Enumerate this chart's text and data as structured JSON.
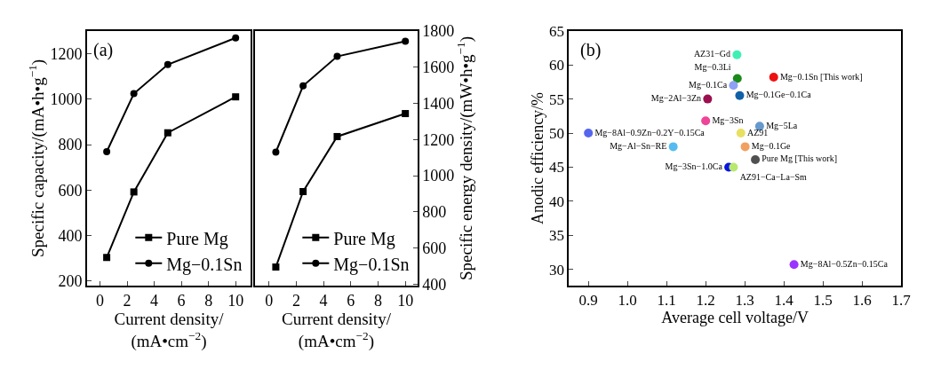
{
  "chart_data": [
    {
      "type": "line",
      "annotations": [
        "(a)"
      ],
      "xlabel": "Current density/\n(mA•cm$^{−2}$)",
      "ylabel": "Specific capacity/(mA•h•g$^{−1}$)",
      "xlim": [
        -0.95,
        11.1
      ],
      "xticks": [
        0,
        2,
        4,
        6,
        8,
        10
      ],
      "ylim": [
        180,
        1300
      ],
      "yticks": [
        200,
        400,
        600,
        800,
        1000,
        1200
      ],
      "legend": "bottom right",
      "line_style": "solid",
      "series": [
        {
          "name": "Pure Mg",
          "color": "#000000",
          "marker": "square",
          "x": [
            0.5,
            2.5,
            5,
            10
          ],
          "values": [
            304,
            592,
            852,
            1010
          ]
        },
        {
          "name": "Mg−0.1Sn",
          "color": "#000000",
          "marker": "circle",
          "x": [
            0.5,
            2.5,
            5,
            10
          ],
          "values": [
            769,
            1024,
            1152,
            1269
          ]
        }
      ]
    },
    {
      "type": "line",
      "xlabel": "Current density/\n(mA•cm$^{−2}$)",
      "y2label": "Specific energy density/(mW•h•g$^{−1}$)",
      "xlim": [
        -1.03,
        10.9
      ],
      "xticks": [
        0,
        2,
        4,
        6,
        8,
        10
      ],
      "y2lim": [
        392,
        1800
      ],
      "y2ticks": [
        400,
        600,
        800,
        1000,
        1200,
        1400,
        1600,
        1800
      ],
      "legend": "bottom right",
      "line_style": "solid",
      "series": [
        {
          "name": "Pure Mg",
          "color": "#000000",
          "marker": "square",
          "axis": "y2",
          "x": [
            0.5,
            2.5,
            5,
            10
          ],
          "values": [
            495,
            912,
            1216,
            1343
          ]
        },
        {
          "name": "Mg−0.1Sn",
          "color": "#000000",
          "marker": "circle",
          "axis": "y2",
          "x": [
            0.5,
            2.5,
            5,
            10
          ],
          "values": [
            1130,
            1496,
            1659,
            1743
          ]
        }
      ]
    },
    {
      "type": "scatter",
      "annotations": [
        "(b)"
      ],
      "xlabel": "Average cell voltage/V",
      "ylabel": "Anodic efficiency/%",
      "xlim": [
        0.85,
        1.7
      ],
      "xticks": [
        0.9,
        {
          "value": 1.0,
          "label": "1.0"
        },
        1.1,
        1.2,
        1.3,
        1.4,
        1.5,
        1.6,
        1.7
      ],
      "ylim": [
        27.6,
        65
      ],
      "yticks": [
        30,
        35,
        40,
        45,
        50,
        55,
        60,
        65
      ],
      "legend": false,
      "marker": "circle",
      "series": [
        {
          "name": "AZ31−Gd",
          "color": "#3ef0b4",
          "x": [
            1.28
          ],
          "values": [
            61.5
          ]
        },
        {
          "name": "Mg−0.3Li",
          "color": "#1a8a1a",
          "x": [
            1.281
          ],
          "values": [
            58.0
          ]
        },
        {
          "name": "Mg−0.1Sn [This work]",
          "color": "#ee1111",
          "x": [
            1.374
          ],
          "values": [
            58.2
          ]
        },
        {
          "name": "Mg−0.1Ca",
          "color": "#8fa0f5",
          "x": [
            1.271
          ],
          "values": [
            57.0
          ]
        },
        {
          "name": "Mg−0.1Ge−0.1Ca",
          "color": "#1060a8",
          "x": [
            1.287
          ],
          "values": [
            55.5
          ]
        },
        {
          "name": "Mg−2Al−3Zn",
          "color": "#9b0f50",
          "x": [
            1.205
          ],
          "values": [
            55.0
          ]
        },
        {
          "name": "Mg−3Sn",
          "color": "#ee4499",
          "x": [
            1.2
          ],
          "values": [
            51.8
          ]
        },
        {
          "name": "Mg−5La",
          "color": "#6699cc",
          "x": [
            1.338
          ],
          "values": [
            51.0
          ]
        },
        {
          "name": "Mg−8Al−0.9Zn−0.2Y−0.15Ca",
          "color": "#5566ee",
          "x": [
            0.9
          ],
          "values": [
            50.0
          ]
        },
        {
          "name": "AZ91",
          "color": "#e8e060",
          "x": [
            1.29
          ],
          "values": [
            50.0
          ]
        },
        {
          "name": "Mg−Al−Sn−RE",
          "color": "#55bbf0",
          "x": [
            1.117
          ],
          "values": [
            48.0
          ]
        },
        {
          "name": "Mg−0.1Ge",
          "color": "#f0a060",
          "x": [
            1.301
          ],
          "values": [
            48.0
          ]
        },
        {
          "name": "Pure Mg [This work]",
          "color": "#505050",
          "x": [
            1.327
          ],
          "values": [
            46.1
          ]
        },
        {
          "name": "Mg−3Sn−1.0Ca",
          "color": "#0a14e0",
          "x": [
            1.259
          ],
          "values": [
            45.0
          ]
        },
        {
          "name": "AZ91−Ca−La−Sm",
          "color": "#b8e870",
          "x": [
            1.271
          ],
          "values": [
            45.0
          ]
        },
        {
          "name": "Mg−8Al−0.5Zn−0.15Ca",
          "color": "#9933ff",
          "x": [
            1.426
          ],
          "values": [
            30.7
          ]
        }
      ]
    }
  ]
}
